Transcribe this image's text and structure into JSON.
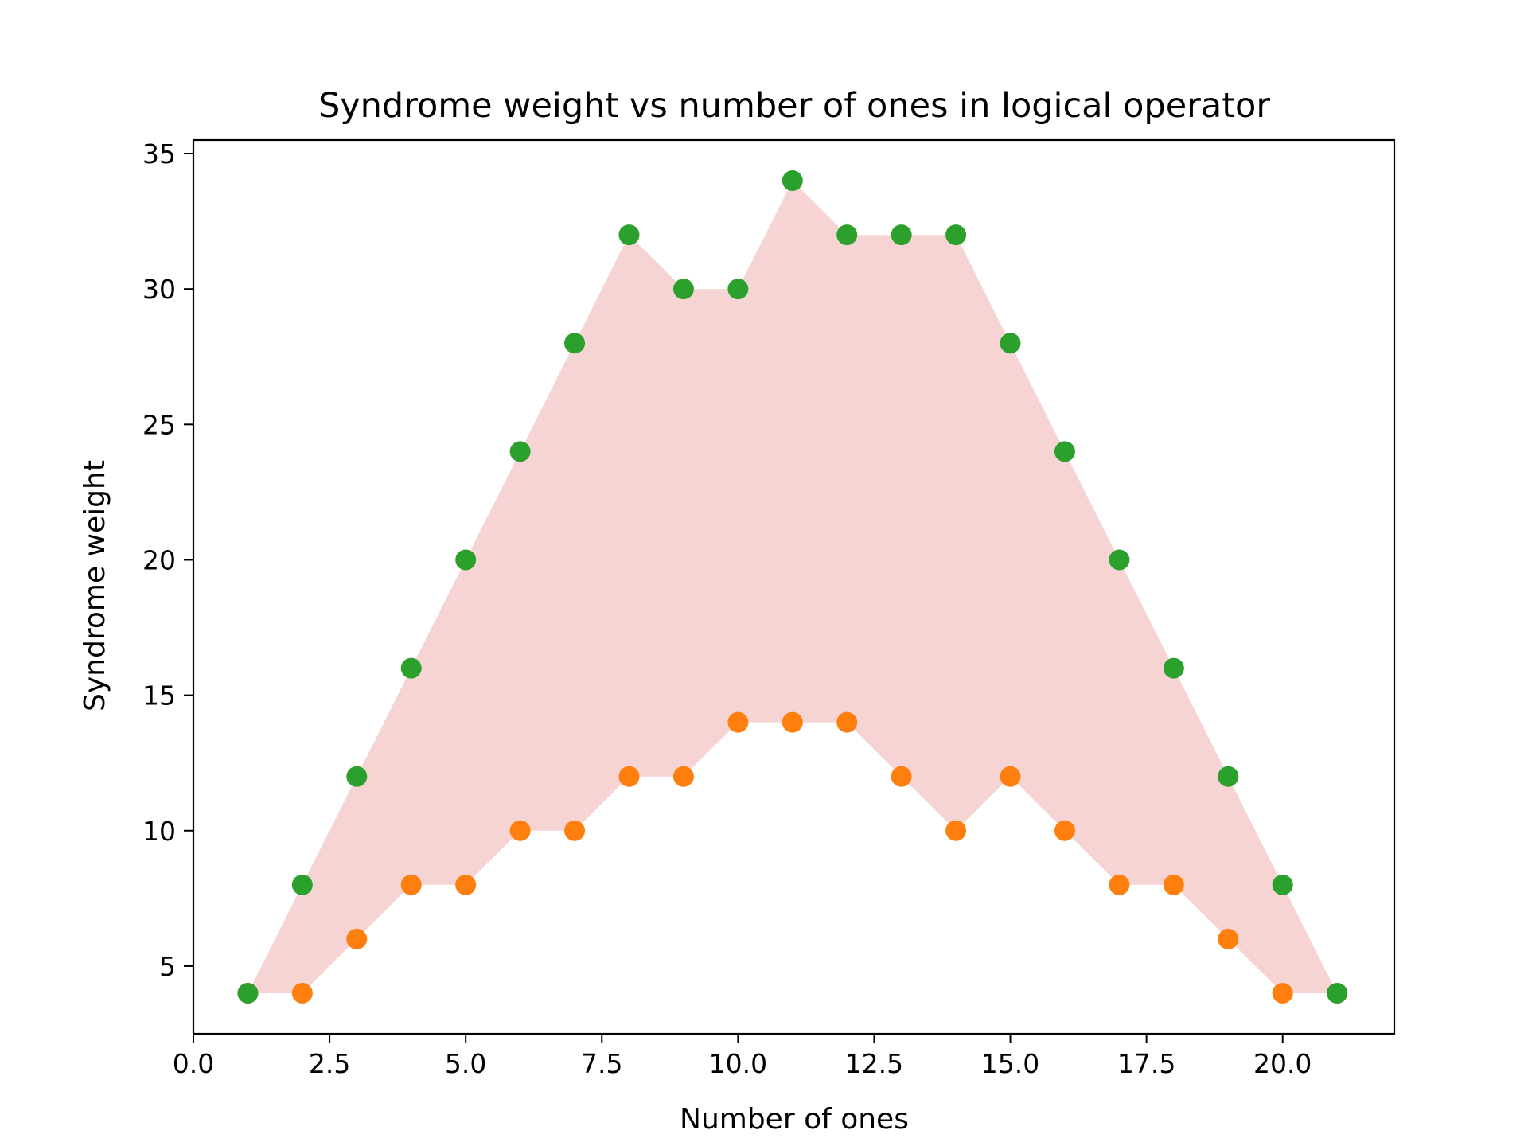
{
  "chart_data": {
    "type": "scatter",
    "title": "Syndrome weight vs number of ones in logical operator",
    "xlabel": "Number of ones",
    "ylabel": "Syndrome weight",
    "xlim": [
      0,
      22.05
    ],
    "ylim": [
      2.5,
      35.5
    ],
    "xticks": [
      0.0,
      2.5,
      5.0,
      7.5,
      10.0,
      12.5,
      15.0,
      17.5,
      20.0
    ],
    "xtick_labels": [
      "0.0",
      "2.5",
      "5.0",
      "7.5",
      "10.0",
      "12.5",
      "15.0",
      "17.5",
      "20.0"
    ],
    "yticks": [
      5,
      10,
      15,
      20,
      25,
      30,
      35
    ],
    "ytick_labels": [
      "5",
      "10",
      "15",
      "20",
      "25",
      "30",
      "35"
    ],
    "grid": false,
    "x": [
      1,
      2,
      3,
      4,
      5,
      6,
      7,
      8,
      9,
      10,
      11,
      12,
      13,
      14,
      15,
      16,
      17,
      18,
      19,
      20,
      21
    ],
    "series": [
      {
        "role": "min",
        "color": "#ff7f0e",
        "values": [
          4,
          4,
          6,
          8,
          8,
          10,
          10,
          12,
          12,
          14,
          14,
          14,
          12,
          10,
          12,
          10,
          8,
          8,
          6,
          4,
          4
        ]
      },
      {
        "role": "max",
        "color": "#2ca02c",
        "values": [
          4,
          8,
          12,
          16,
          20,
          24,
          28,
          32,
          30,
          30,
          34,
          32,
          32,
          32,
          28,
          24,
          20,
          16,
          12,
          8,
          4
        ]
      }
    ],
    "fill_between": {
      "lower": "min",
      "upper": "max",
      "color": "#d62728",
      "alpha": 0.2
    }
  }
}
